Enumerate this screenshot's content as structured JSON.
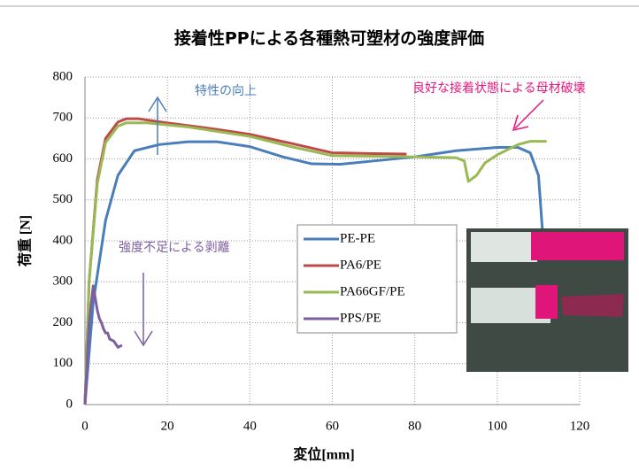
{
  "chart_data": {
    "type": "line",
    "title": "接着性PPによる各種熱可塑材の強度評価",
    "x_label": "変位[mm]",
    "y_label": "荷重 [N]",
    "annotations": [
      "特性の向上",
      "良好な接着状態による母材破壊",
      "強度不足による剥離"
    ],
    "xlim": [
      0,
      120
    ],
    "xticks": [
      0,
      20,
      40,
      60,
      80,
      100,
      120
    ],
    "ylim": [
      0,
      800
    ],
    "yticks": [
      0,
      100,
      200,
      300,
      400,
      500,
      600,
      700,
      800
    ],
    "grid": true,
    "series": [
      {
        "name": "PE-PE",
        "color": "#4a7ebb",
        "x": [
          0,
          2,
          5,
          8,
          12,
          18,
          25,
          32,
          40,
          48,
          55,
          62,
          70,
          80,
          90,
          100,
          105,
          108,
          110,
          111
        ],
        "values": [
          0,
          250,
          450,
          560,
          620,
          635,
          642,
          642,
          630,
          605,
          588,
          587,
          595,
          605,
          620,
          628,
          628,
          615,
          560,
          420
        ]
      },
      {
        "name": "PA6/PE",
        "color": "#be4b48",
        "x": [
          0,
          1,
          3,
          5,
          8,
          10,
          13,
          20,
          30,
          40,
          50,
          60,
          70,
          78
        ],
        "values": [
          0,
          300,
          550,
          650,
          690,
          698,
          698,
          688,
          675,
          660,
          638,
          615,
          613,
          612
        ]
      },
      {
        "name": "PA66GF/PE",
        "color": "#98b954",
        "x": [
          0,
          1,
          3,
          5,
          8,
          10,
          15,
          25,
          40,
          50,
          60,
          80,
          90,
          92,
          93,
          95,
          97,
          100,
          105,
          108,
          112
        ],
        "values": [
          0,
          300,
          540,
          640,
          680,
          688,
          688,
          678,
          655,
          630,
          608,
          605,
          603,
          595,
          545,
          560,
          590,
          610,
          635,
          643,
          643
        ]
      },
      {
        "name": "PPS/PE",
        "color": "#7d5fa0",
        "x": [
          0,
          1,
          2,
          3,
          3.5,
          4,
          4.5,
          5,
          5.5,
          6,
          7,
          8,
          9
        ],
        "values": [
          0,
          200,
          290,
          230,
          210,
          200,
          185,
          175,
          175,
          160,
          155,
          140,
          145
        ]
      }
    ]
  }
}
